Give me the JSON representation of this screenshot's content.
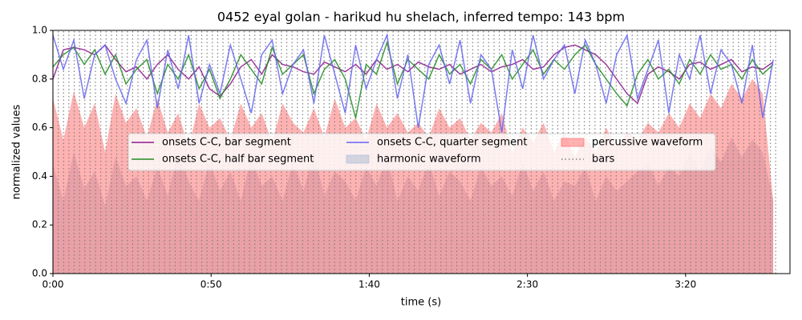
{
  "chart_data": {
    "type": "line",
    "title": "0452 eyal golan - harikud hu shelach, inferred tempo: 143 bpm",
    "x_label": "time (s)",
    "y_label": "normalized values",
    "xlim": [
      0,
      233
    ],
    "ylim": [
      0,
      1
    ],
    "xticks": [
      {
        "value": 0,
        "label": "0:00"
      },
      {
        "value": 50,
        "label": "0:50"
      },
      {
        "value": 100,
        "label": "1:40"
      },
      {
        "value": 150,
        "label": "2:30"
      },
      {
        "value": 200,
        "label": "3:20"
      }
    ],
    "yticks": [
      {
        "value": 0,
        "label": "0.0"
      },
      {
        "value": 0.2,
        "label": "0.2"
      },
      {
        "value": 0.4,
        "label": "0.4"
      },
      {
        "value": 0.6,
        "label": "0.6"
      },
      {
        "value": 0.8,
        "label": "0.8"
      },
      {
        "value": 1,
        "label": "1.0"
      }
    ],
    "x": [
      0,
      3.3,
      6.6,
      9.9,
      13.2,
      16.5,
      19.8,
      23.1,
      26.4,
      29.7,
      33,
      36.3,
      39.6,
      42.9,
      46.2,
      49.5,
      52.8,
      56.1,
      59.4,
      62.7,
      66,
      69.3,
      72.6,
      75.9,
      79.2,
      82.5,
      85.8,
      89.1,
      92.4,
      95.7,
      99,
      102.3,
      105.6,
      108.9,
      112.2,
      115.5,
      118.8,
      122.1,
      125.4,
      128.7,
      132,
      135.3,
      138.6,
      141.9,
      145.2,
      148.5,
      151.8,
      155.1,
      158.4,
      161.7,
      165,
      168.3,
      171.6,
      174.9,
      178.2,
      181.5,
      184.8,
      188.1,
      191.4,
      194.7,
      198,
      201.3,
      204.6,
      207.9,
      211.2,
      214.5,
      217.8,
      221.1,
      224.4,
      227.7
    ],
    "series": [
      {
        "name": "onsets C-C, bar segment",
        "kind": "line",
        "color": "#8b1a8b",
        "values": [
          0.8,
          0.92,
          0.93,
          0.92,
          0.9,
          0.94,
          0.88,
          0.83,
          0.85,
          0.8,
          0.86,
          0.9,
          0.84,
          0.8,
          0.85,
          0.76,
          0.73,
          0.78,
          0.85,
          0.88,
          0.82,
          0.9,
          0.86,
          0.85,
          0.83,
          0.82,
          0.87,
          0.85,
          0.83,
          0.86,
          0.82,
          0.88,
          0.84,
          0.86,
          0.83,
          0.87,
          0.85,
          0.84,
          0.86,
          0.82,
          0.84,
          0.86,
          0.83,
          0.85,
          0.86,
          0.88,
          0.84,
          0.85,
          0.9,
          0.93,
          0.94,
          0.92,
          0.9,
          0.86,
          0.8,
          0.74,
          0.7,
          0.82,
          0.85,
          0.83,
          0.8,
          0.86,
          0.87,
          0.84,
          0.86,
          0.88,
          0.83,
          0.85,
          0.84,
          0.87
        ]
      },
      {
        "name": "onsets C-C, half bar segment",
        "kind": "line",
        "color": "#228b22",
        "values": [
          0.85,
          0.9,
          0.93,
          0.86,
          0.92,
          0.82,
          0.9,
          0.78,
          0.84,
          0.88,
          0.74,
          0.86,
          0.8,
          0.9,
          0.76,
          0.84,
          0.72,
          0.8,
          0.9,
          0.84,
          0.78,
          0.93,
          0.82,
          0.86,
          0.9,
          0.74,
          0.84,
          0.88,
          0.8,
          0.64,
          0.86,
          0.82,
          0.95,
          0.78,
          0.88,
          0.84,
          0.8,
          0.9,
          0.82,
          0.86,
          0.78,
          0.88,
          0.84,
          0.9,
          0.8,
          0.86,
          0.92,
          0.82,
          0.88,
          0.84,
          0.9,
          0.94,
          0.86,
          0.8,
          0.74,
          0.69,
          0.82,
          0.88,
          0.8,
          0.84,
          0.78,
          0.88,
          0.82,
          0.9,
          0.84,
          0.86,
          0.8,
          0.88,
          0.82,
          0.86
        ]
      },
      {
        "name": "onsets C-C, quarter segment",
        "kind": "line",
        "color": "#6464f0",
        "values": [
          0.98,
          0.84,
          0.96,
          0.72,
          0.9,
          0.94,
          0.8,
          0.7,
          0.88,
          0.96,
          0.68,
          0.92,
          0.76,
          0.98,
          0.7,
          0.86,
          0.74,
          0.94,
          0.8,
          0.66,
          0.9,
          0.96,
          0.74,
          0.86,
          0.92,
          0.7,
          0.98,
          0.82,
          0.66,
          0.94,
          0.76,
          0.88,
          0.98,
          0.72,
          0.9,
          0.6,
          0.86,
          0.94,
          0.78,
          0.96,
          0.7,
          0.9,
          0.84,
          0.58,
          0.92,
          0.76,
          0.98,
          0.8,
          0.88,
          0.94,
          0.74,
          0.96,
          0.86,
          0.7,
          0.9,
          0.98,
          0.72,
          0.84,
          0.96,
          0.66,
          0.9,
          0.8,
          0.98,
          0.74,
          0.92,
          0.86,
          0.7,
          0.94,
          0.64,
          0.88
        ]
      },
      {
        "name": "harmonic waveform",
        "kind": "area",
        "color": "#a8b8d0",
        "values": [
          0.45,
          0.3,
          0.5,
          0.35,
          0.42,
          0.28,
          0.48,
          0.36,
          0.4,
          0.3,
          0.44,
          0.32,
          0.5,
          0.38,
          0.3,
          0.46,
          0.34,
          0.42,
          0.3,
          0.48,
          0.36,
          0.4,
          0.3,
          0.46,
          0.34,
          0.5,
          0.32,
          0.42,
          0.38,
          0.3,
          0.44,
          0.36,
          0.48,
          0.3,
          0.4,
          0.34,
          0.46,
          0.32,
          0.42,
          0.38,
          0.3,
          0.44,
          0.36,
          0.4,
          0.32,
          0.46,
          0.34,
          0.42,
          0.3,
          0.38,
          0.36,
          0.44,
          0.3,
          0.4,
          0.34,
          0.38,
          0.42,
          0.46,
          0.36,
          0.44,
          0.4,
          0.5,
          0.42,
          0.52,
          0.46,
          0.56,
          0.48,
          0.55,
          0.5,
          0.3
        ]
      },
      {
        "name": "percussive waveform",
        "kind": "area",
        "color": "#ff6666",
        "values": [
          0.72,
          0.55,
          0.75,
          0.6,
          0.7,
          0.5,
          0.74,
          0.62,
          0.68,
          0.56,
          0.72,
          0.58,
          0.66,
          0.52,
          0.7,
          0.6,
          0.64,
          0.55,
          0.7,
          0.6,
          0.66,
          0.54,
          0.7,
          0.62,
          0.58,
          0.68,
          0.56,
          0.72,
          0.6,
          0.64,
          0.55,
          0.7,
          0.6,
          0.66,
          0.58,
          0.62,
          0.56,
          0.68,
          0.6,
          0.64,
          0.55,
          0.62,
          0.58,
          0.66,
          0.5,
          0.6,
          0.54,
          0.62,
          0.5,
          0.58,
          0.48,
          0.56,
          0.5,
          0.6,
          0.52,
          0.58,
          0.55,
          0.62,
          0.58,
          0.66,
          0.6,
          0.7,
          0.64,
          0.74,
          0.68,
          0.78,
          0.72,
          0.8,
          0.74,
          0.3
        ]
      },
      {
        "name": "bars",
        "kind": "vlines",
        "color": "#808080",
        "x": [
          0,
          1.68,
          3.36,
          5.04,
          6.72,
          8.4,
          10.08,
          11.76,
          13.44,
          15.12,
          16.8,
          18.48,
          20.16,
          21.84,
          23.52,
          25.2,
          26.88,
          28.56,
          30.24,
          31.92,
          33.6,
          35.28,
          36.96,
          38.64,
          40.32,
          42,
          43.68,
          45.36,
          47.04,
          48.72,
          50.4,
          52.08,
          53.76,
          55.44,
          57.12,
          58.8,
          60.48,
          62.16,
          63.84,
          65.52,
          67.2,
          68.88,
          70.56,
          72.24,
          73.92,
          75.6,
          77.28,
          78.96,
          80.64,
          82.32,
          84,
          85.68,
          87.36,
          89.04,
          90.72,
          92.4,
          94.08,
          95.76,
          97.44,
          99.12,
          100.8,
          102.48,
          104.16,
          105.84,
          107.52,
          109.2,
          110.88,
          112.56,
          114.24,
          115.92,
          117.6,
          119.28,
          120.96,
          122.64,
          124.32,
          126,
          127.68,
          129.36,
          131.04,
          132.72,
          134.4,
          136.08,
          137.76,
          139.44,
          141.12,
          142.8,
          144.48,
          146.16,
          147.84,
          149.52,
          151.2,
          152.88,
          154.56,
          156.24,
          157.92,
          159.6,
          161.28,
          162.96,
          164.64,
          166.32,
          168,
          169.68,
          171.36,
          173.04,
          174.72,
          176.4,
          178.08,
          179.76,
          181.44,
          183.12,
          184.8,
          186.48,
          188.16,
          189.84,
          191.52,
          193.2,
          194.88,
          196.56,
          198.24,
          199.92,
          201.6,
          203.28,
          204.96,
          206.64,
          208.32,
          210,
          211.68,
          213.36,
          215.04,
          216.72,
          218.4,
          220.08,
          221.76,
          223.44,
          225.12,
          226.8,
          228.48
        ]
      }
    ]
  }
}
